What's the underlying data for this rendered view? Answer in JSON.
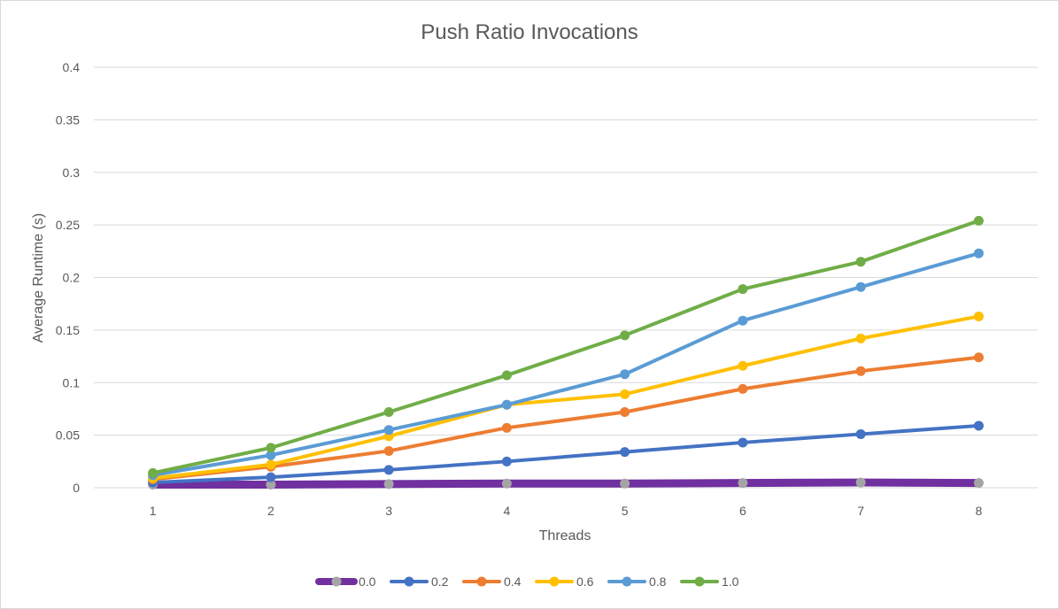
{
  "chart_data": {
    "type": "line",
    "title": "Push Ratio Invocations",
    "xlabel": "Threads",
    "ylabel": "Average Runtime (s)",
    "x": [
      1,
      2,
      3,
      4,
      5,
      6,
      7,
      8
    ],
    "x_tick_labels": [
      "1",
      "2",
      "3",
      "4",
      "5",
      "6",
      "7",
      "8"
    ],
    "ylim": [
      0,
      0.4
    ],
    "y_ticks": [
      0,
      0.05,
      0.1,
      0.15,
      0.2,
      0.25,
      0.3,
      0.35,
      0.4
    ],
    "y_tick_labels": [
      "0",
      "0.05",
      "0.1",
      "0.15",
      "0.2",
      "0.25",
      "0.3",
      "0.35",
      "0.4"
    ],
    "grid": "horizontal",
    "legend_position": "bottom",
    "series": [
      {
        "name": "0.0",
        "line_color": "#7030a0",
        "marker_color": "#a5a5a5",
        "line_width": "thick",
        "values": [
          0.003,
          0.003,
          0.0035,
          0.004,
          0.004,
          0.0045,
          0.005,
          0.0045
        ]
      },
      {
        "name": "0.2",
        "line_color": "#4472c4",
        "marker_color": "#4472c4",
        "values": [
          0.005,
          0.01,
          0.017,
          0.025,
          0.034,
          0.043,
          0.051,
          0.059
        ]
      },
      {
        "name": "0.4",
        "line_color": "#ed7d31",
        "marker_color": "#ed7d31",
        "values": [
          0.008,
          0.02,
          0.035,
          0.057,
          0.072,
          0.094,
          0.111,
          0.124
        ]
      },
      {
        "name": "0.6",
        "line_color": "#ffc000",
        "marker_color": "#ffc000",
        "values": [
          0.009,
          0.022,
          0.049,
          0.079,
          0.089,
          0.116,
          0.142,
          0.163
        ]
      },
      {
        "name": "0.8",
        "line_color": "#5b9bd5",
        "marker_color": "#5b9bd5",
        "values": [
          0.012,
          0.031,
          0.055,
          0.079,
          0.108,
          0.159,
          0.191,
          0.223
        ]
      },
      {
        "name": "1.0",
        "line_color": "#70ad47",
        "marker_color": "#70ad47",
        "values": [
          0.014,
          0.038,
          0.072,
          0.107,
          0.145,
          0.189,
          0.215,
          0.254
        ]
      }
    ]
  },
  "colors": {
    "gridline": "#d9d9d9",
    "text": "#595959"
  }
}
